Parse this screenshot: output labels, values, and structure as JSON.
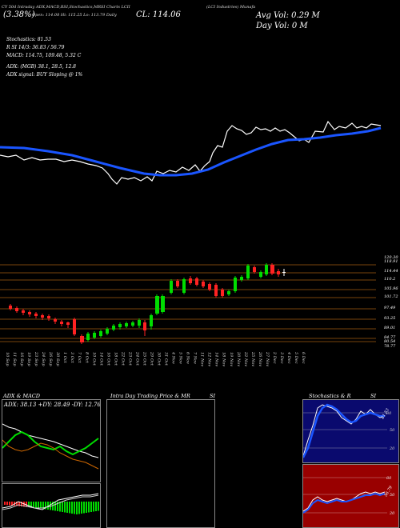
{
  "header": {
    "top_left_small": "CY 50d Intraday ADX,MACD,RSI,Stochastics,MRSI Charts LCII",
    "left_big": "(3.38%)",
    "left_sub": "Open: 114.08  Hi: 115.25  Lo: 113.79  Daily",
    "center_big": "CL: 114.06",
    "right_small": "(LCI Industries) Munafa",
    "right_big_1": "Avg Vol: 0.29 M",
    "right_big_2": "Day Vol: 0   M"
  },
  "info": {
    "stochastics": "Stochastics: 81.53",
    "rsi": "R                    SI 14/3: 36.83 / 56.79",
    "macd": "MACD: 114.75,  109.48,  5.32  C",
    "adx": "ADX:                                          (MGB) 38.1,  28.5,  12.8",
    "adx_signal": "ADX  signal:                               BUY Sloping @ 1%"
  },
  "price_levels": [
    "120.30",
    "118.91",
    "114.44",
    "110.2",
    "105.96",
    "101.72",
    "97.49",
    "93.25",
    "89.01",
    "84.77",
    "80.54",
    "78.77"
  ],
  "dates": [
    "10 Sep",
    "11 Sep",
    "16 Sep",
    "19 Sep",
    "23 Sep",
    "24 Sep",
    "26 Sep",
    "30 Sep",
    "1 Oct",
    "3 Oct",
    "7 Oct",
    "8 Oct",
    "10 Oct",
    "14 Oct",
    "16 Oct",
    "18 Oct",
    "22 Oct",
    "23 Oct",
    "24 Oct",
    "25 Oct",
    "29 Oct",
    "30 Oct",
    "31 Oct",
    "4 Nov",
    "5 Nov",
    "6 Nov",
    "7 Nov",
    "11 Nov",
    "12 Nov",
    "14 Nov",
    "18 Nov",
    "19 Nov",
    "20 Nov",
    "22 Nov",
    "25 Nov",
    "26 Nov",
    "27 Nov",
    "2 Dec",
    "3 Dec",
    "4 Dec",
    "5 Dec",
    "6 Dec"
  ],
  "panels": {
    "adx": {
      "title": "ADX  & MACD",
      "values": "ADX: 38.13  +DY: 28.49  -DY: 12.76"
    },
    "intraday": {
      "title": "Intra  Day  Trading  Price  & MR",
      "title_right": "SI"
    },
    "stoch": {
      "title": "Stochastics  & R",
      "title_right": "SI",
      "label": "81.53",
      "ticks": [
        "80",
        "50",
        "20"
      ]
    },
    "rsi": {
      "label": "56.79",
      "ticks": [
        "80",
        "50",
        "20"
      ]
    }
  },
  "colors": {
    "background": "#000000",
    "ma_line": "#1a55ff",
    "price_line": "#ffffff",
    "up_candle": "#00dd00",
    "down_candle": "#ff2222",
    "level_line": "#a05a10",
    "stoch_bg": "#0a0a6e",
    "rsi_bg": "#990000"
  }
}
